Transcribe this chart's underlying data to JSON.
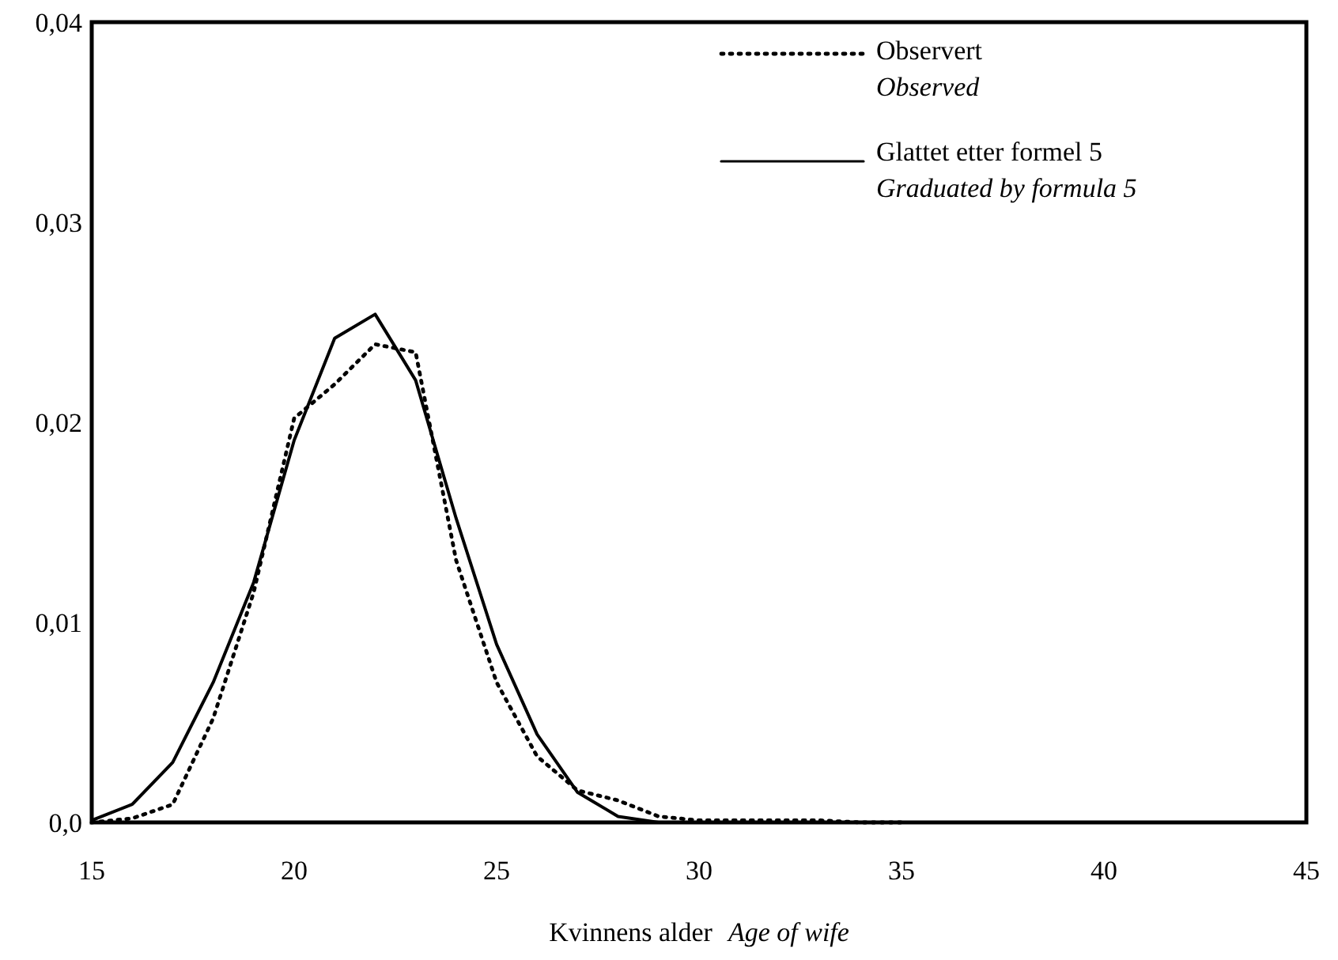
{
  "chart_data": {
    "type": "line",
    "xlabel": "Kvinnens alder\nAge of wife",
    "xlim": [
      15,
      45
    ],
    "xticks": [
      15,
      20,
      25,
      30,
      35,
      40,
      45
    ],
    "ylim": [
      0,
      0.04
    ],
    "yticks": [
      {
        "value": 0,
        "label": "0,0"
      },
      {
        "value": 0.01,
        "label": "0,01"
      },
      {
        "value": 0.02,
        "label": "0,02"
      },
      {
        "value": 0.03,
        "label": "0,03"
      },
      {
        "value": 0.04,
        "label": "0,04"
      }
    ],
    "grid": false,
    "legend": "top right",
    "marker": "none",
    "series": [
      {
        "name": "Observert\nObserved",
        "color": "#000000",
        "line_style": "dotted",
        "x": [
          15,
          16,
          17,
          18,
          19,
          20,
          21,
          22,
          23,
          24,
          25,
          26,
          27,
          28,
          29,
          30,
          31,
          32,
          33,
          34,
          35
        ],
        "values": [
          0,
          0.0002,
          0.0009,
          0.0052,
          0.0115,
          0.0202,
          0.0219,
          0.0239,
          0.0235,
          0.0131,
          0.007,
          0.0033,
          0.0016,
          0.0011,
          0.0003,
          0.0001,
          0.0001,
          0.0001,
          0.0001,
          0,
          0
        ]
      },
      {
        "name": "Glattet etter formel 5\nGraduated by formula 5",
        "color": "#000000",
        "line_style": "solid",
        "x": [
          15,
          16,
          17,
          18,
          19,
          20,
          21,
          22,
          23,
          24,
          25,
          26,
          27,
          28,
          29,
          30,
          31,
          32,
          33,
          34,
          35
        ],
        "values": [
          0.0001,
          0.0009,
          0.003,
          0.007,
          0.012,
          0.0191,
          0.0242,
          0.0254,
          0.0221,
          0.0152,
          0.0089,
          0.0044,
          0.0015,
          0.0003,
          0,
          0,
          0,
          0,
          0,
          0,
          0
        ]
      }
    ]
  }
}
